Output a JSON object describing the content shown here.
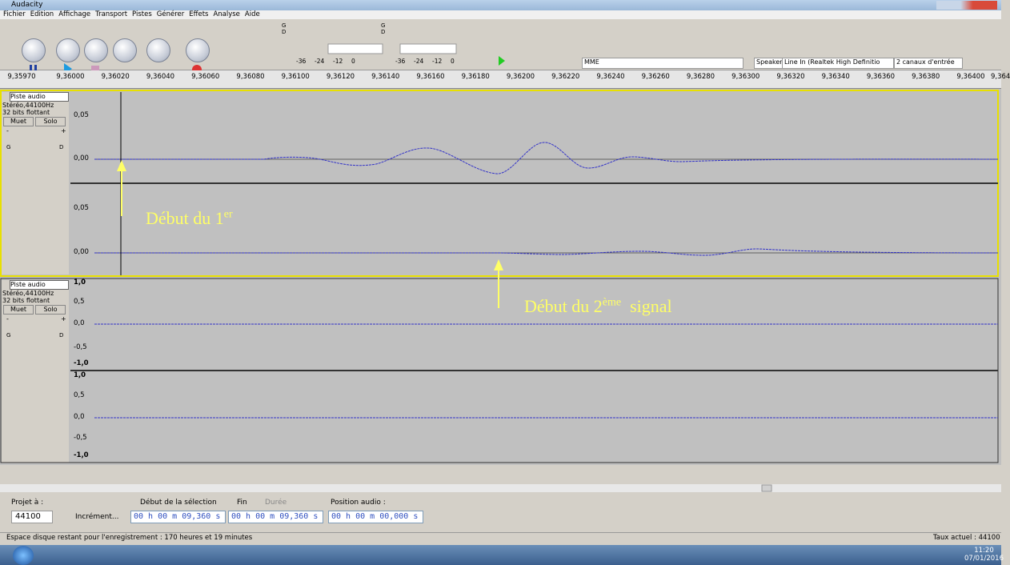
{
  "window": {
    "title": "Audacity"
  },
  "menu": [
    "Fichier",
    "Edition",
    "Affichage",
    "Transport",
    "Pistes",
    "Générer",
    "Effets",
    "Analyse",
    "Aide"
  ],
  "meters": [
    {
      "left": "G",
      "right": "D",
      "scale": [
        "-36",
        "-24",
        "-12",
        "0"
      ]
    },
    {
      "left": "G",
      "right": "D",
      "scale": [
        "-36",
        "-24",
        "-12",
        "0"
      ]
    }
  ],
  "devices": {
    "host": "MME",
    "output": "Speakers (Realtek High Definit",
    "input": "Line In (Realtek High Definitio",
    "channels": "2 canaux d'entrée"
  },
  "timeline": [
    "9,35970",
    "9,36000",
    "9,36020",
    "9,36040",
    "9,36060",
    "9,36080",
    "9,36100",
    "9,36120",
    "9,36140",
    "9,36160",
    "9,36180",
    "9,36200",
    "9,36220",
    "9,36240",
    "9,36260",
    "9,36280",
    "9,36300",
    "9,36320",
    "9,36340",
    "9,36360",
    "9,36380",
    "9,36400",
    "9,364"
  ],
  "tracks": [
    {
      "name": "Piste audio",
      "format": "Stéréo,44100Hz",
      "bits": "32 bits flottant",
      "mute": "Muet",
      "solo": "Solo",
      "gain": [
        "-",
        "+"
      ],
      "pan": [
        "G",
        "D"
      ],
      "channels": [
        [
          "0,05",
          "0,00"
        ],
        [
          "0,05",
          "0,00"
        ]
      ]
    },
    {
      "name": "Piste audio",
      "format": "Stéréo,44100Hz",
      "bits": "32 bits flottant",
      "mute": "Muet",
      "solo": "Solo",
      "gain": [
        "-",
        "+"
      ],
      "pan": [
        "G",
        "D"
      ],
      "channels": [
        [
          "1,0",
          "0,5",
          "0,0",
          "-0,5",
          "-1,0"
        ],
        [
          "1,0",
          "0,5",
          "0,0",
          "-0,5",
          "-1,0"
        ]
      ]
    }
  ],
  "annotations": [
    {
      "text": "Début du 1",
      "sup": "er"
    },
    {
      "text": "Début du 2",
      "sup": "ème",
      "after": "signal"
    }
  ],
  "selection_toolbar": {
    "project_rate_label": "Projet à :",
    "project_rate": "44100",
    "snap": "Incrément...",
    "selection_start_label": "Début de la sélection",
    "end": "Fin",
    "length": "Durée",
    "audio_position_label": "Position audio :",
    "selection_start": "00 h 00 m 09,360 s",
    "selection_end": "00 h 00 m 09,360 s",
    "audio_position": "00 h 00 m 00,000 s"
  },
  "status": {
    "left": "Espace disque restant pour l'enregistrement : 170 heures et 19 minutes",
    "right": "Taux actuel : 44100"
  },
  "taskbar": {
    "time": "11:20",
    "date": "07/01/2016"
  }
}
